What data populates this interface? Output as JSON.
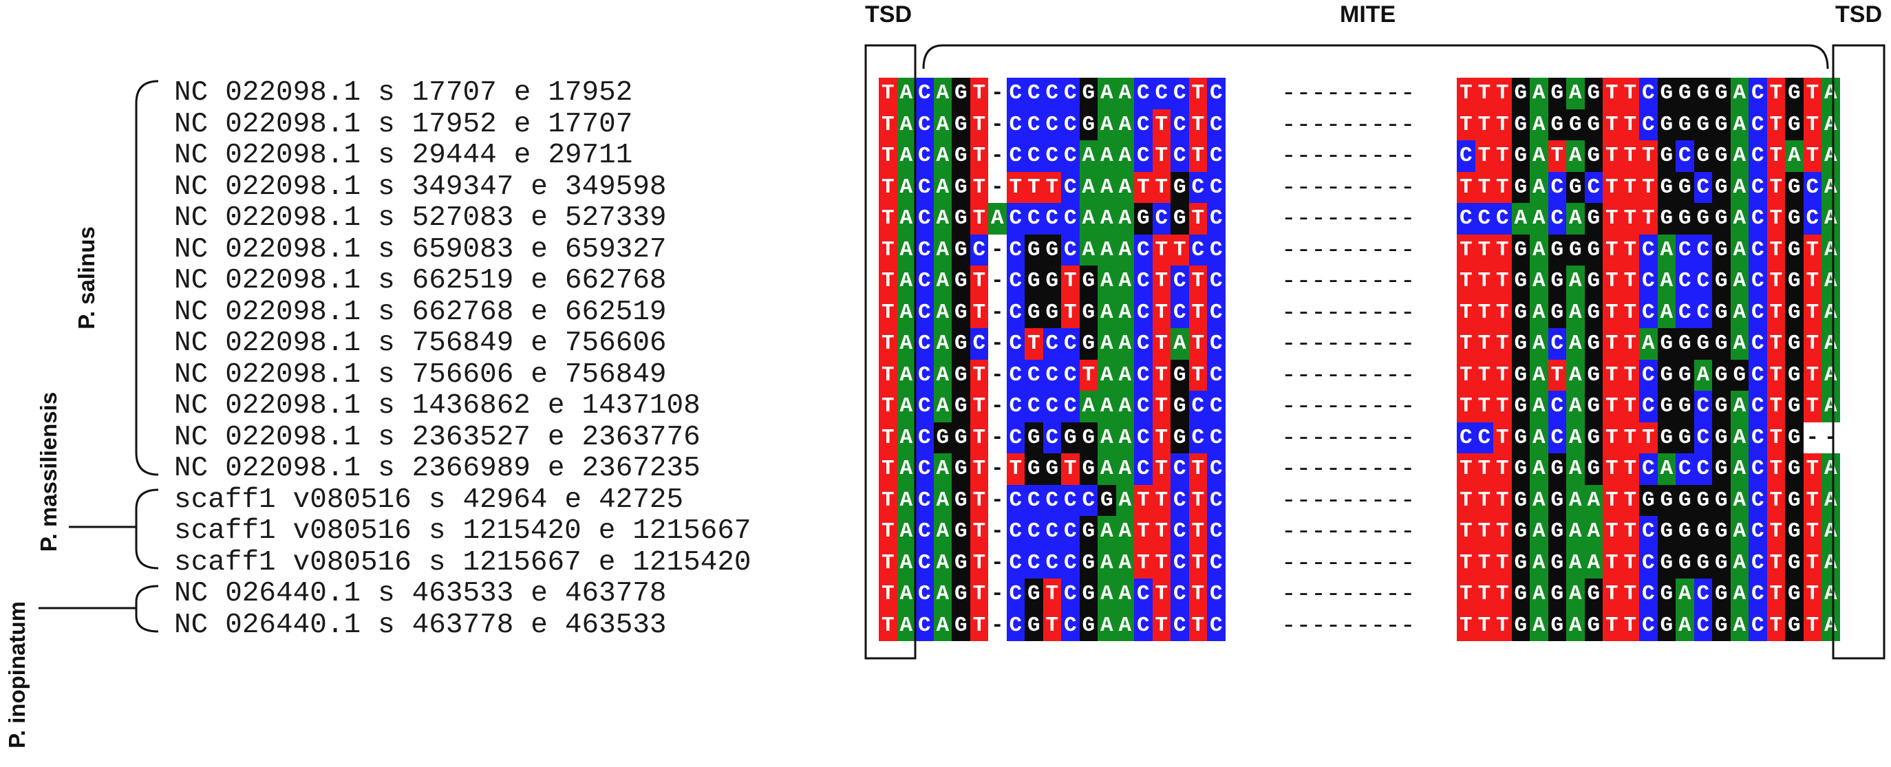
{
  "headers": {
    "tsd_left": "TSD",
    "mite": "MITE",
    "tsd_right": "TSD"
  },
  "species": [
    {
      "label": "P. salinus"
    },
    {
      "label": "P. massiliensis"
    },
    {
      "label": "P. inopinatum"
    }
  ],
  "rows": [
    {
      "parts": [
        "NC",
        "022098.1",
        "s",
        "17707",
        "e",
        "17952"
      ],
      "left": "TACAGT-CCCCGAACCCTC",
      "gap": "---------",
      "right": "TTTGAGAGTTCGGGGACTGTA"
    },
    {
      "parts": [
        "NC",
        "022098.1",
        "s",
        "17952",
        "e",
        "17707"
      ],
      "left": "TACAGT-CCCCGAACTCTC",
      "gap": "---------",
      "right": "TTTGAGGGTTCGGGGACTGTA"
    },
    {
      "parts": [
        "NC",
        "022098.1",
        "s",
        "29444",
        "e",
        "29711"
      ],
      "left": "TACAGT-CCCCAAACTCTC",
      "gap": "---------",
      "right": "CTTGATAGTTTGCGGACTATA"
    },
    {
      "parts": [
        "NC",
        "022098.1",
        "s",
        "349347",
        "e",
        "349598"
      ],
      "left": "TACAGT-TTTCAAATTGCC",
      "gap": "---------",
      "right": "TTTGACGCTTTGGCGACTGCA"
    },
    {
      "parts": [
        "NC",
        "022098.1",
        "s",
        "527083",
        "e",
        "527339"
      ],
      "left": "TACAGTACCCCAAAGCGTC",
      "gap": "---------",
      "right": "CCCAACAGTTTGGGGACTGCA"
    },
    {
      "parts": [
        "NC",
        "022098.1",
        "s",
        "659083",
        "e",
        "659327"
      ],
      "left": "TACAGC-CGGCAAACTTCC",
      "gap": "---------",
      "right": "TTTGAGGGTTCACCGACTGTA"
    },
    {
      "parts": [
        "NC",
        "022098.1",
        "s",
        "662519",
        "e",
        "662768"
      ],
      "left": "TACAGT-CGGTGAACTCTC",
      "gap": "---------",
      "right": "TTTGAGAGTTCACCGACTGTA"
    },
    {
      "parts": [
        "NC",
        "022098.1",
        "s",
        "662768",
        "e",
        "662519"
      ],
      "left": "TACAGT-CGGTGAACTCTC",
      "gap": "---------",
      "right": "TTTGAGAGTTCACCGACTGTA"
    },
    {
      "parts": [
        "NC",
        "022098.1",
        "s",
        "756849",
        "e",
        "756606"
      ],
      "left": "TACAGC-CTCCGAACTATC",
      "gap": "---------",
      "right": "TTTGACAGTTAGGGGACTGTA"
    },
    {
      "parts": [
        "NC",
        "022098.1",
        "s",
        "756606",
        "e",
        "756849"
      ],
      "left": "TACAGT-CCCCTAACTGTC",
      "gap": "---------",
      "right": "TTTGATAGTTCGGAGGCTGTA"
    },
    {
      "parts": [
        "NC",
        "022098.1",
        "s",
        "1436862",
        "e",
        "1437108"
      ],
      "left": "TACAGT-CCCCAAACTGCC",
      "gap": "---------",
      "right": "TTTGACAGTTCGGCGACTGTA"
    },
    {
      "parts": [
        "NC",
        "022098.1",
        "s",
        "2363527",
        "e",
        "2363776"
      ],
      "left": "TACGGT-CGCGGAACTGCC",
      "gap": "---------",
      "right": "CCTGACAGTTTGGCGACTG--"
    },
    {
      "parts": [
        "NC",
        "022098.1",
        "s",
        "2366989",
        "e",
        "2367235"
      ],
      "left": "TACAGT-TGGTGAACTCTC",
      "gap": "---------",
      "right": "TTTGAGAGTTCACCGACTGTA"
    },
    {
      "parts": [
        "scaff1",
        "v080516",
        "s",
        "42964",
        "e",
        "42725"
      ],
      "left": "TACAGT-CCCCCGATTCTC",
      "gap": "---------",
      "right": "TTTGAGAATTGGGGGACTGTA"
    },
    {
      "parts": [
        "scaff1",
        "v080516",
        "s",
        "1215420",
        "e",
        "1215667"
      ],
      "left": "TACAGT-CCCCGAATTCTC",
      "gap": "---------",
      "right": "TTTGAGAATTCGGGGACTGTA"
    },
    {
      "parts": [
        "scaff1",
        "v080516",
        "s",
        "1215667",
        "e",
        "1215420"
      ],
      "left": "TACAGT-CCCCGAATTCTC",
      "gap": "---------",
      "right": "TTTGAGAATTCGGGGACTGTA"
    },
    {
      "parts": [
        "NC",
        "026440.1",
        "s",
        "463533",
        "e",
        "463778"
      ],
      "left": "TACAGT-CGTCGAACTCTC",
      "gap": "---------",
      "right": "TTTGAGAGTTCGACGACTGTA"
    },
    {
      "parts": [
        "NC",
        "026440.1",
        "s",
        "463778",
        "e",
        "463533"
      ],
      "left": "TACAGT-CGTCGAACTCTC",
      "gap": "---------",
      "right": "TTTGAGAGTTCGACGACTGTA"
    }
  ],
  "colors": {
    "A": "#118c22",
    "C": "#1e1efa",
    "G": "#0c0c0c",
    "T": "#f21a1a"
  }
}
